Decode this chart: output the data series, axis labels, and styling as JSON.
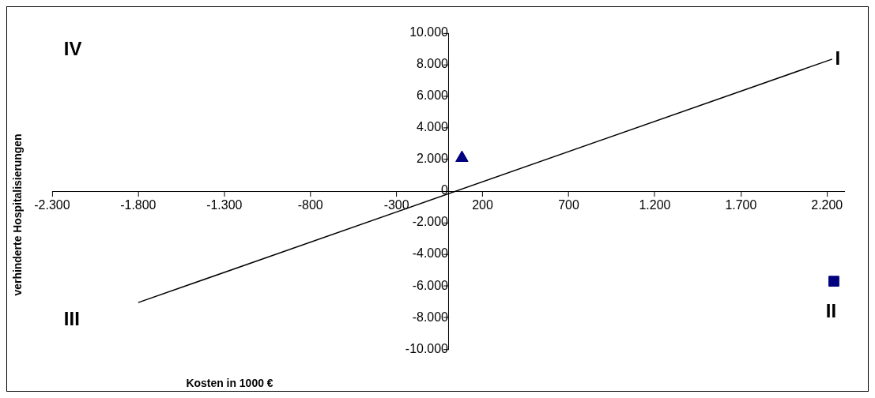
{
  "chart_data": {
    "type": "scatter",
    "xlabel": "Kosten in 1000 €",
    "ylabel": "verhinderte Hospitalisierungen",
    "xlim": [
      -2300,
      2300
    ],
    "ylim": [
      -10000,
      10000
    ],
    "xticks": [
      {
        "value": -2300,
        "label": "-2.300"
      },
      {
        "value": -1800,
        "label": "-1.800"
      },
      {
        "value": -1300,
        "label": "-1.300"
      },
      {
        "value": -800,
        "label": "-800"
      },
      {
        "value": -300,
        "label": "-300"
      },
      {
        "value": 200,
        "label": "200"
      },
      {
        "value": 700,
        "label": "700"
      },
      {
        "value": 1200,
        "label": "1.200"
      },
      {
        "value": 1700,
        "label": "1.700"
      },
      {
        "value": 2200,
        "label": "2.200"
      }
    ],
    "yticks": [
      {
        "value": -10000,
        "label": "-10.000"
      },
      {
        "value": -8000,
        "label": "-8.000"
      },
      {
        "value": -6000,
        "label": "-6.000"
      },
      {
        "value": -4000,
        "label": "-4.000"
      },
      {
        "value": -2000,
        "label": "-2.000"
      },
      {
        "value": 0,
        "label": "0"
      },
      {
        "value": 2000,
        "label": "2.000"
      },
      {
        "value": 4000,
        "label": "4.000"
      },
      {
        "value": 6000,
        "label": "6.000"
      },
      {
        "value": 8000,
        "label": "8.000"
      },
      {
        "value": 10000,
        "label": "10.000"
      }
    ],
    "grid": false,
    "legend": false,
    "series": [
      {
        "color": "#000080",
        "marker": "triangle",
        "x": [
          80
        ],
        "values": [
          2100
        ]
      },
      {
        "color": "#000080",
        "marker": "square",
        "x": [
          2240
        ],
        "values": [
          -5700
        ]
      },
      {
        "type": "line",
        "color": "#000000",
        "marker": "none",
        "line_style": "solid",
        "x": [
          -1800,
          2230
        ],
        "values": [
          -7050,
          8350
        ]
      }
    ],
    "annotations": [
      "IV",
      "I",
      "III",
      "II"
    ]
  }
}
